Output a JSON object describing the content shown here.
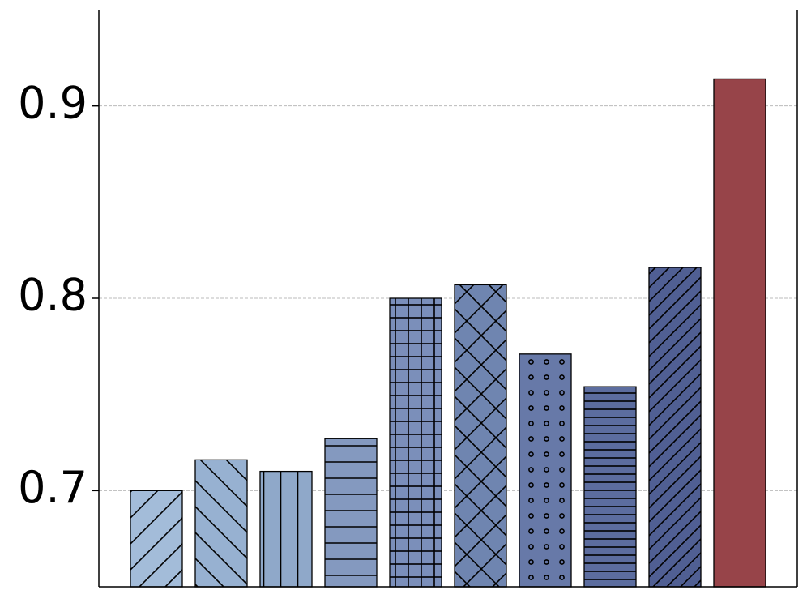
{
  "chart_data": {
    "type": "bar",
    "categories": [
      null,
      null,
      null,
      null,
      null,
      null,
      null,
      null,
      null,
      null
    ],
    "values": [
      0.7,
      0.716,
      0.71,
      0.727,
      0.8,
      0.807,
      0.771,
      0.754,
      0.816,
      0.914
    ],
    "colors": [
      "#a3bcd9",
      "#97b1d1",
      "#8fa8c9",
      "#8499bf",
      "#7b8fba",
      "#6f85b0",
      "#6779a8",
      "#5c6d9f",
      "#505f93",
      "#974449"
    ],
    "hatches": [
      "/",
      "\\",
      "|",
      "-",
      "+",
      "x",
      "o",
      "--",
      "//",
      ""
    ],
    "ylim": [
      0.65,
      0.95
    ],
    "yticks": [
      0.7,
      0.8,
      0.9
    ],
    "grid": true
  }
}
